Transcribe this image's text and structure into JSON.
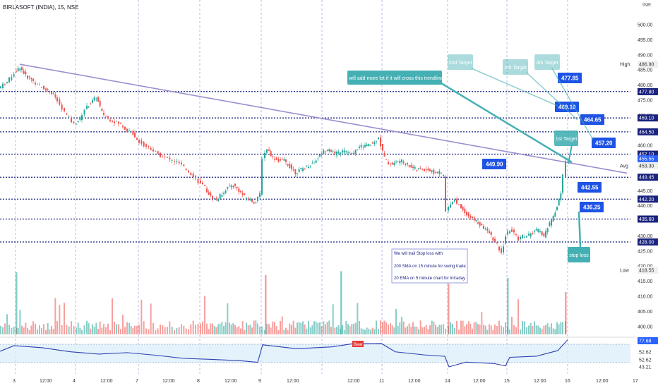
{
  "header": {
    "symbol_line": "BIRLASOFT (INDIA), 15, NSE",
    "currency": "INR"
  },
  "colors": {
    "up": "#26a69a",
    "down": "#ef5350",
    "level": "#1a237e",
    "trend": "#9c8fcf",
    "label_bg": "#1e53e5",
    "callout": "#45b0b4",
    "rsi": "#2c3fb1",
    "rsi_band": "#d8ecfb"
  },
  "chart_data": {
    "type": "candlestick",
    "title": "",
    "y_axis": {
      "min": 395,
      "max": 505,
      "ticks": [
        500,
        495,
        490,
        485,
        480,
        475,
        470,
        465,
        460,
        455,
        450,
        445,
        440,
        435,
        430,
        425,
        420,
        415,
        410,
        405,
        400
      ]
    },
    "x_axis": {
      "labels": [
        "3",
        "12:00",
        "4",
        "12:00",
        "7",
        "12:00",
        "8",
        "12:00",
        "9",
        "12:00",
        "12:00",
        "11",
        "12:00",
        "14",
        "12:00",
        "15",
        "12:00",
        "16",
        "12:00",
        "17"
      ]
    },
    "axis_tags": [
      {
        "label": "High",
        "value": "486.90"
      },
      {
        "value": "477.80"
      },
      {
        "value": "469.10"
      },
      {
        "value": "464.50"
      },
      {
        "value": "457.10"
      },
      {
        "value": "455.55"
      },
      {
        "label": "Avg",
        "value": "453.30"
      },
      {
        "value": "449.45"
      },
      {
        "value": "442.20"
      },
      {
        "value": "435.60"
      },
      {
        "value": "428.00"
      },
      {
        "label": "Low",
        "value": "418.55"
      }
    ],
    "levels": [
      477.85,
      469.1,
      464.5,
      457.1,
      449.45,
      442.2,
      435.6,
      428.0
    ],
    "trendline": {
      "from": {
        "x": "3",
        "y": 486.9
      },
      "to": {
        "x": "16 12:00",
        "y": 450.5
      }
    },
    "price_labels": [
      "477.85",
      "469.10",
      "464.65",
      "457.20",
      "449.90",
      "442.55",
      "436.25"
    ],
    "annotations": {
      "trend_note": "I will add more lot if it will cross this trendline",
      "first_target": "1st Target",
      "second_target": "2nd Target",
      "third_target": "3rd Target",
      "fourth_target": "4th Target",
      "stop_loss": "stop loss",
      "trail_title": "We will trail Stop loss with",
      "trail_line1": "200 SMA on 15 minute for swing trade",
      "trail_line2": "20 EMA on 5 minute chart for Intraday"
    },
    "rsi": {
      "ticks": [
        "77.68",
        "52.62",
        "52.62",
        "43.21"
      ],
      "signal": "Bear"
    }
  }
}
